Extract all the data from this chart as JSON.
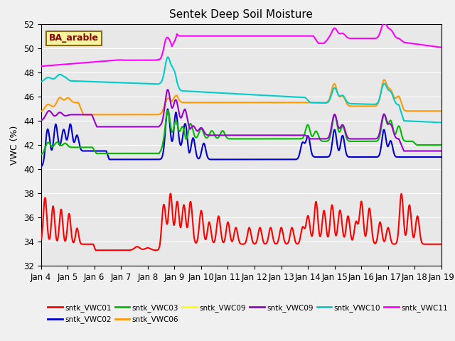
{
  "title": "Sentek Deep Soil Moisture",
  "ylabel": "VWC (%)",
  "ylim": [
    32,
    52
  ],
  "xlim": [
    0,
    15
  ],
  "background_color": "#e8e8e8",
  "annotation_text": "BA_arable",
  "annotation_color": "#8B0000",
  "annotation_bg": "#f5f5a0",
  "annotation_border": "#8B6914",
  "series_colors": {
    "VWC01": "#ff0000",
    "VWC02": "#0000cc",
    "VWC03": "#00bb00",
    "VWC06": "#ff9900",
    "VWC09y": "#ffff00",
    "VWC09p": "#9900cc",
    "VWC10": "#00cccc",
    "VWC11": "#ff00ff"
  },
  "series_labels": {
    "VWC01": "sntk_VWC01",
    "VWC02": "sntk_VWC02",
    "VWC03": "sntk_VWC03",
    "VWC06": "sntk_VWC06",
    "VWC09y": "sntk_VWC09",
    "VWC09p": "sntk_VWC09",
    "VWC10": "sntk_VWC10",
    "VWC11": "sntk_VWC11"
  },
  "xtick_labels": [
    "Jan 4",
    "Jan 5",
    "Jan 6",
    "Jan 7",
    "Jan 8",
    "Jan 9",
    "Jan 10",
    "Jan 11",
    "Jan 12",
    "Jan 13",
    "Jan 14",
    "Jan 15",
    "Jan 16",
    "Jan 17",
    "Jan 18",
    "Jan 19"
  ],
  "yticks": [
    32,
    34,
    36,
    38,
    40,
    42,
    44,
    46,
    48,
    50,
    52
  ]
}
